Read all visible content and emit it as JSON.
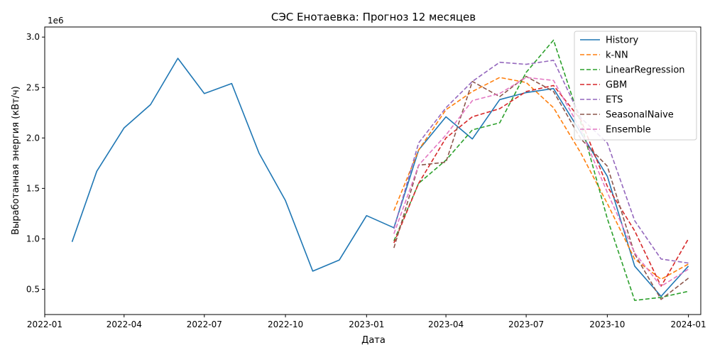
{
  "chart_data": {
    "type": "line",
    "title": "СЭС Енотаевка: Прогноз 12 месяцев",
    "xlabel": "Дата",
    "ylabel": "Выработанная энергия (кВт/ч)",
    "y_offset_label": "1e6",
    "ylim": [
      0.25,
      3.1
    ],
    "xlim": [
      "2022-01-01",
      "2024-01-15"
    ],
    "x_ticks": [
      "2022-01-01",
      "2022-04-01",
      "2022-07-01",
      "2022-10-01",
      "2023-01-01",
      "2023-04-01",
      "2023-07-01",
      "2023-10-01",
      "2024-01-01"
    ],
    "x_tick_labels": [
      "2022-01",
      "2022-04",
      "2022-07",
      "2022-10",
      "2023-01",
      "2023-04",
      "2023-07",
      "2023-10",
      "2024-01"
    ],
    "y_ticks": [
      0.5,
      1.0,
      1.5,
      2.0,
      2.5,
      3.0
    ],
    "y_tick_labels": [
      "0.5",
      "1.0",
      "1.5",
      "2.0",
      "2.5",
      "3.0"
    ],
    "grid": false,
    "legend_position": "top-right",
    "series": [
      {
        "name": "History",
        "color": "#1f77b4",
        "dashed": false,
        "x": [
          "2022-02-01",
          "2022-03-01",
          "2022-04-01",
          "2022-05-01",
          "2022-06-01",
          "2022-07-01",
          "2022-08-01",
          "2022-09-01",
          "2022-10-01",
          "2022-11-01",
          "2022-12-01",
          "2023-01-01",
          "2023-02-01",
          "2023-03-01",
          "2023-04-01",
          "2023-05-01",
          "2023-06-01",
          "2023-07-01",
          "2023-08-01",
          "2023-09-01",
          "2023-10-01",
          "2023-11-01",
          "2023-12-01",
          "2024-01-01"
        ],
        "values": [
          0.97,
          1.67,
          2.1,
          2.33,
          2.79,
          2.44,
          2.54,
          1.85,
          1.38,
          0.68,
          0.79,
          1.23,
          1.11,
          1.88,
          2.21,
          1.99,
          2.38,
          2.45,
          2.49,
          2.05,
          1.62,
          0.73,
          0.43,
          0.73
        ]
      },
      {
        "name": "k-NN",
        "color": "#ff7f0e",
        "dashed": true,
        "x": [
          "2023-02-01",
          "2023-03-01",
          "2023-04-01",
          "2023-05-01",
          "2023-06-01",
          "2023-07-01",
          "2023-08-01",
          "2023-09-01",
          "2023-10-01",
          "2023-11-01",
          "2023-12-01",
          "2024-01-01"
        ],
        "values": [
          1.28,
          1.88,
          2.28,
          2.46,
          2.6,
          2.55,
          2.3,
          1.85,
          1.35,
          0.8,
          0.6,
          0.75
        ]
      },
      {
        "name": "LinearRegression",
        "color": "#2ca02c",
        "dashed": true,
        "x": [
          "2023-02-01",
          "2023-03-01",
          "2023-04-01",
          "2023-05-01",
          "2023-06-01",
          "2023-07-01",
          "2023-08-01",
          "2023-09-01",
          "2023-10-01",
          "2023-11-01",
          "2023-12-01",
          "2024-01-01"
        ],
        "values": [
          0.98,
          1.55,
          1.78,
          2.08,
          2.15,
          2.65,
          2.97,
          2.15,
          1.2,
          0.39,
          0.42,
          0.48
        ]
      },
      {
        "name": "GBM",
        "color": "#d62728",
        "dashed": true,
        "x": [
          "2023-02-01",
          "2023-03-01",
          "2023-04-01",
          "2023-05-01",
          "2023-06-01",
          "2023-07-01",
          "2023-08-01",
          "2023-09-01",
          "2023-10-01",
          "2023-11-01",
          "2023-12-01",
          "2024-01-01"
        ],
        "values": [
          0.96,
          1.55,
          2.0,
          2.21,
          2.29,
          2.46,
          2.52,
          2.18,
          1.52,
          1.08,
          0.53,
          1.0
        ]
      },
      {
        "name": "ETS",
        "color": "#9467bd",
        "dashed": true,
        "x": [
          "2023-02-01",
          "2023-03-01",
          "2023-04-01",
          "2023-05-01",
          "2023-06-01",
          "2023-07-01",
          "2023-08-01",
          "2023-09-01",
          "2023-10-01",
          "2023-11-01",
          "2023-12-01",
          "2024-01-01"
        ],
        "values": [
          1.1,
          1.95,
          2.3,
          2.56,
          2.75,
          2.73,
          2.77,
          2.2,
          1.95,
          1.18,
          0.8,
          0.76
        ]
      },
      {
        "name": "SeasonalNaive",
        "color": "#8c564b",
        "dashed": true,
        "x": [
          "2023-02-01",
          "2023-03-01",
          "2023-04-01",
          "2023-05-01",
          "2023-06-01",
          "2023-07-01",
          "2023-08-01",
          "2023-09-01",
          "2023-10-01",
          "2023-11-01",
          "2023-12-01",
          "2024-01-01"
        ],
        "values": [
          0.91,
          1.73,
          1.76,
          2.56,
          2.41,
          2.61,
          2.46,
          1.99,
          1.72,
          0.85,
          0.4,
          0.61
        ]
      },
      {
        "name": "Ensemble",
        "color": "#e377c2",
        "dashed": true,
        "x": [
          "2023-02-01",
          "2023-03-01",
          "2023-04-01",
          "2023-05-01",
          "2023-06-01",
          "2023-07-01",
          "2023-08-01",
          "2023-09-01",
          "2023-10-01",
          "2023-11-01",
          "2023-12-01",
          "2024-01-01"
        ],
        "values": [
          1.05,
          1.73,
          2.03,
          2.37,
          2.44,
          2.6,
          2.57,
          2.08,
          1.46,
          0.86,
          0.53,
          0.7
        ]
      }
    ]
  }
}
